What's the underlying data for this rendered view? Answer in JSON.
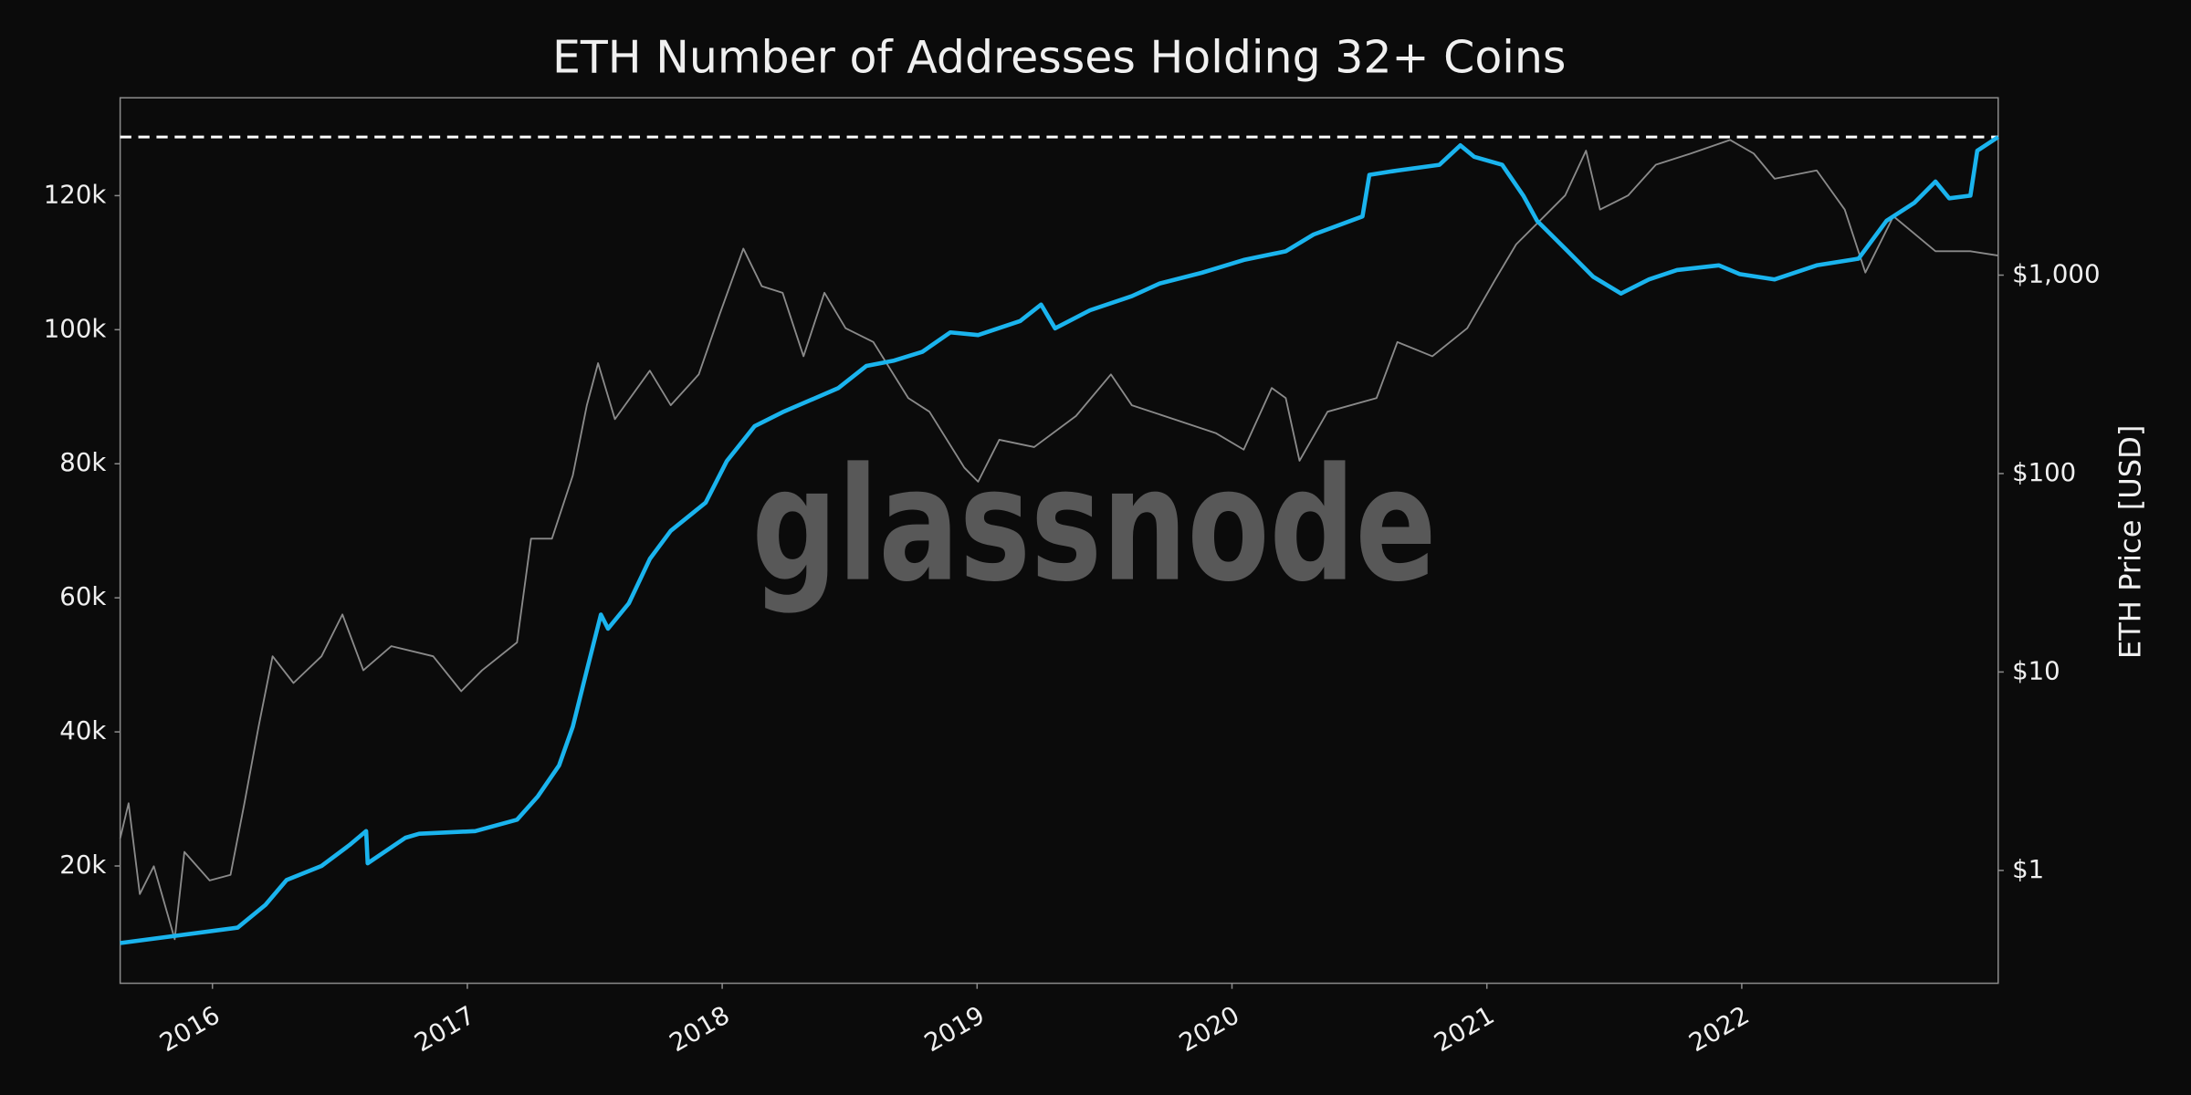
{
  "chart_data": {
    "type": "line",
    "title": "ETH Number of Addresses Holding 32+ Coins",
    "y2label": "ETH Price [USD]",
    "watermark": "glassnode",
    "xlim": [
      2015.638,
      2023.006
    ],
    "xticks": [
      2016,
      2017,
      2018,
      2019,
      2020,
      2021,
      2022
    ],
    "ylim": [
      2500,
      134600
    ],
    "yticks": [
      {
        "value": 20000,
        "label": "20k"
      },
      {
        "value": 40000,
        "label": "40k"
      },
      {
        "value": 60000,
        "label": "60k"
      },
      {
        "value": 80000,
        "label": "80k"
      },
      {
        "value": 100000,
        "label": "100k"
      },
      {
        "value": 120000,
        "label": "120k"
      }
    ],
    "y2scale": "log",
    "y2lim": [
      0.27,
      7830
    ],
    "y2ticks": [
      {
        "value": 1,
        "label": "$1"
      },
      {
        "value": 10,
        "label": "$10"
      },
      {
        "value": 100,
        "label": "$100"
      },
      {
        "value": 1000,
        "label": "$1,000"
      }
    ],
    "reference_line": 128750,
    "reference_color": "#ffffff",
    "series": [
      {
        "color": "#8a8a8a",
        "axis": "y2",
        "x": [
          2015.638,
          2015.671,
          2015.715,
          2015.77,
          2015.852,
          2015.89,
          2015.989,
          2016.071,
          2016.126,
          2016.181,
          2016.236,
          2016.318,
          2016.428,
          2016.51,
          2016.592,
          2016.702,
          2016.866,
          2016.976,
          2017.058,
          2017.195,
          2017.25,
          2017.332,
          2017.414,
          2017.469,
          2017.513,
          2017.579,
          2017.716,
          2017.798,
          2017.908,
          2017.99,
          2018.083,
          2018.155,
          2018.237,
          2018.319,
          2018.401,
          2018.484,
          2018.593,
          2018.73,
          2018.813,
          2018.95,
          2019.004,
          2019.087,
          2019.224,
          2019.388,
          2019.525,
          2019.607,
          2019.772,
          2019.936,
          2020.046,
          2020.156,
          2020.211,
          2020.265,
          2020.375,
          2020.567,
          2020.649,
          2020.786,
          2020.923,
          2021.033,
          2021.115,
          2021.197,
          2021.307,
          2021.389,
          2021.444,
          2021.554,
          2021.663,
          2021.8,
          2021.954,
          2022.047,
          2022.129,
          2022.294,
          2022.404,
          2022.485,
          2022.595,
          2022.76,
          2022.897,
          2023.006
        ],
        "values": [
          1.45,
          2.18,
          0.76,
          1.05,
          0.45,
          1.24,
          0.89,
          0.95,
          2.2,
          5.3,
          12,
          8.8,
          12,
          19.5,
          10.2,
          13.5,
          12,
          8,
          10.2,
          14.1,
          47,
          47,
          98,
          221,
          360,
          188,
          330,
          221,
          316,
          635,
          1360,
          880,
          815,
          390,
          815,
          540,
          460,
          240,
          205,
          107,
          91,
          148,
          136,
          195,
          316,
          221,
          188,
          160,
          132,
          270,
          240,
          116,
          205,
          240,
          460,
          390,
          540,
          950,
          1430,
          1820,
          2520,
          4240,
          2140,
          2520,
          3600,
          4100,
          4800,
          4100,
          3060,
          3370,
          2140,
          1030,
          1980,
          1320,
          1320,
          1255
        ]
      },
      {
        "color": "#1ab4ee",
        "axis": "y",
        "x": [
          2015.638,
          2016.099,
          2016.208,
          2016.291,
          2016.428,
          2016.537,
          2016.603,
          2016.609,
          2016.757,
          2016.811,
          2017.031,
          2017.195,
          2017.277,
          2017.36,
          2017.414,
          2017.469,
          2017.524,
          2017.552,
          2017.634,
          2017.716,
          2017.798,
          2017.935,
          2018.018,
          2018.127,
          2018.237,
          2018.456,
          2018.566,
          2018.675,
          2018.785,
          2018.895,
          2019.004,
          2019.169,
          2019.251,
          2019.306,
          2019.443,
          2019.607,
          2019.717,
          2019.882,
          2020.046,
          2020.211,
          2020.32,
          2020.512,
          2020.539,
          2020.649,
          2020.814,
          2020.896,
          2020.95,
          2021.06,
          2021.143,
          2021.197,
          2021.307,
          2021.417,
          2021.526,
          2021.636,
          2021.746,
          2021.91,
          2021.992,
          2022.129,
          2022.294,
          2022.458,
          2022.568,
          2022.678,
          2022.76,
          2022.814,
          2022.897,
          2022.924,
          2023.006
        ],
        "values": [
          8500,
          10800,
          14200,
          17900,
          20000,
          23100,
          25200,
          20400,
          24200,
          24800,
          25200,
          26900,
          30400,
          35000,
          40800,
          49200,
          57500,
          55400,
          59200,
          65800,
          70000,
          74200,
          80400,
          85600,
          87700,
          91300,
          94600,
          95400,
          96700,
          99600,
          99200,
          101300,
          103750,
          100200,
          102900,
          105000,
          106900,
          108500,
          110400,
          111700,
          114200,
          116900,
          123100,
          123750,
          124600,
          127500,
          125800,
          124600,
          120000,
          116250,
          112100,
          107900,
          105400,
          107500,
          108900,
          109600,
          108300,
          107500,
          109600,
          110600,
          116250,
          118960,
          122100,
          119600,
          120000,
          126700,
          128750
        ]
      }
    ]
  }
}
